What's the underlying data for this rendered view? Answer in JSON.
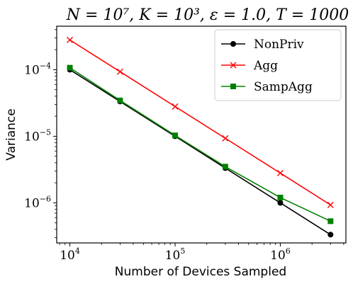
{
  "chart_data": {
    "type": "line",
    "title": "N = 10⁷, K = 10³, ε = 1.0, T = 1000",
    "xlabel": "Number of Devices Sampled",
    "ylabel": "Variance",
    "xscale": "log",
    "yscale": "log",
    "xlim": [
      7500,
      4200000
    ],
    "ylim": [
      2.5e-07,
      0.00045
    ],
    "grid": false,
    "legend_position": "top-right",
    "x_ticks": [
      {
        "value": 10000,
        "label_base": "10",
        "label_exp": "4"
      },
      {
        "value": 100000,
        "label_base": "10",
        "label_exp": "5"
      },
      {
        "value": 1000000,
        "label_base": "10",
        "label_exp": "6"
      }
    ],
    "y_ticks": [
      {
        "value": 1e-06,
        "label_base": "10",
        "label_exp": "−6"
      },
      {
        "value": 1e-05,
        "label_base": "10",
        "label_exp": "−5"
      },
      {
        "value": 0.0001,
        "label_base": "10",
        "label_exp": "−4"
      }
    ],
    "x": [
      10000,
      30000,
      100000,
      300000,
      1000000,
      3000000
    ],
    "series": [
      {
        "name": "NonPriv",
        "color": "#000000",
        "marker": "circle",
        "values": [
          0.0001,
          3.33e-05,
          1e-05,
          3.33e-06,
          1e-06,
          3.33e-07
        ]
      },
      {
        "name": "Agg",
        "color": "#ff0000",
        "marker": "x",
        "values": [
          0.00028,
          9.33e-05,
          2.8e-05,
          9.33e-06,
          2.8e-06,
          9.3e-07
        ]
      },
      {
        "name": "SampAgg",
        "color": "#008000",
        "marker": "square",
        "values": [
          0.000107,
          3.45e-05,
          1.03e-05,
          3.5e-06,
          1.2e-06,
          5.3e-07
        ]
      }
    ]
  }
}
